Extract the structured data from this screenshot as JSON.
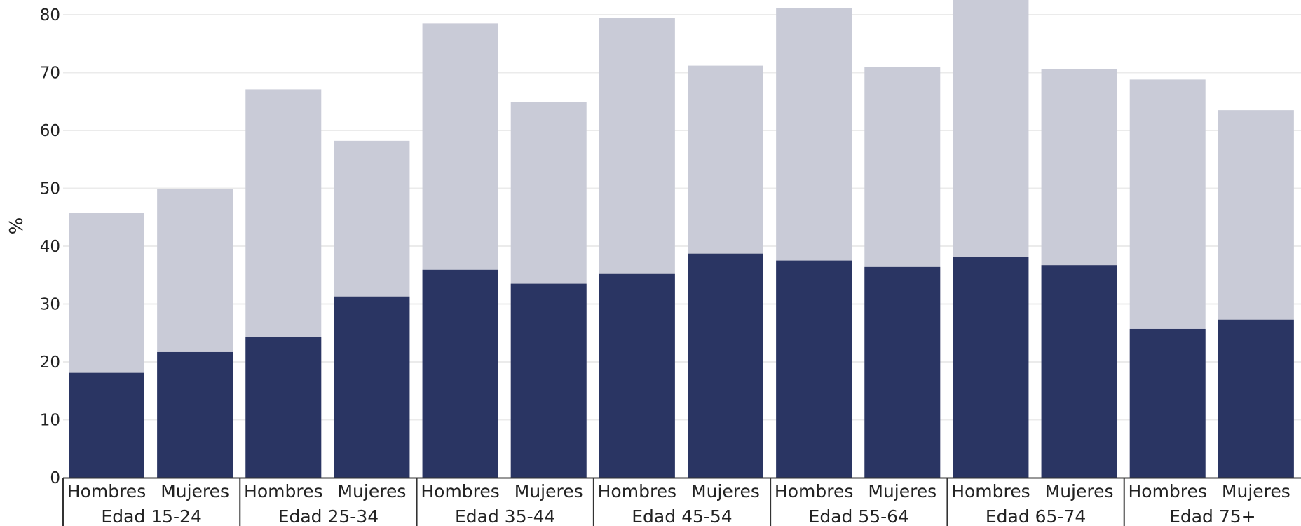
{
  "chart_data": {
    "type": "bar",
    "stacked": "overlay",
    "ylabel": "%",
    "ylim": [
      0,
      80
    ],
    "yticks": [
      0,
      10,
      20,
      30,
      40,
      50,
      60,
      70,
      80
    ],
    "grid": true,
    "groups": [
      "Edad 15-24",
      "Edad 25-34",
      "Edad 35-44",
      "Edad 45-54",
      "Edad 55-64",
      "Edad 65-74",
      "Edad 75+"
    ],
    "subcategories": [
      "Hombres",
      "Mujeres"
    ],
    "series": [
      {
        "key": "outer",
        "color": "#c9cbd7",
        "values": [
          45.7,
          49.9,
          67.1,
          58.2,
          78.5,
          64.9,
          79.5,
          71.2,
          81.2,
          71.0,
          83.0,
          70.6,
          68.8,
          63.5
        ]
      },
      {
        "key": "inner",
        "color": "#2a3563",
        "values": [
          18.1,
          21.7,
          24.3,
          31.3,
          35.9,
          33.5,
          35.3,
          38.7,
          37.5,
          36.5,
          38.1,
          36.7,
          25.7,
          27.3
        ]
      }
    ]
  }
}
